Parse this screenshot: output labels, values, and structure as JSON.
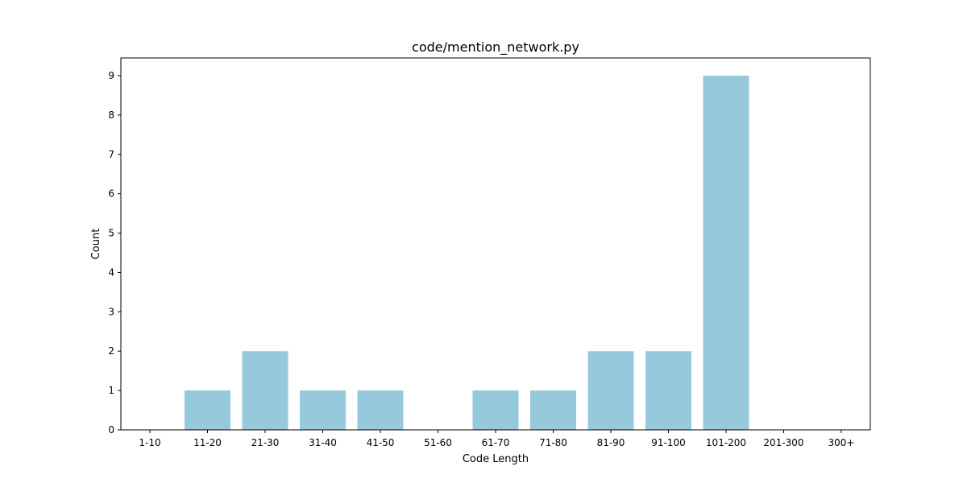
{
  "chart_data": {
    "type": "bar",
    "title": "code/mention_network.py",
    "xlabel": "Code Length",
    "ylabel": "Count",
    "categories": [
      "1-10",
      "11-20",
      "21-30",
      "31-40",
      "41-50",
      "51-60",
      "61-70",
      "71-80",
      "81-90",
      "91-100",
      "101-200",
      "201-300",
      "300+"
    ],
    "values": [
      0,
      1,
      2,
      1,
      1,
      0,
      1,
      1,
      2,
      2,
      9,
      0,
      0
    ],
    "ylim": [
      0,
      9.45
    ],
    "yticks": [
      0,
      1,
      2,
      3,
      4,
      5,
      6,
      7,
      8,
      9
    ],
    "bar_color": "#96c9dc",
    "grid": false,
    "legend": "none"
  }
}
